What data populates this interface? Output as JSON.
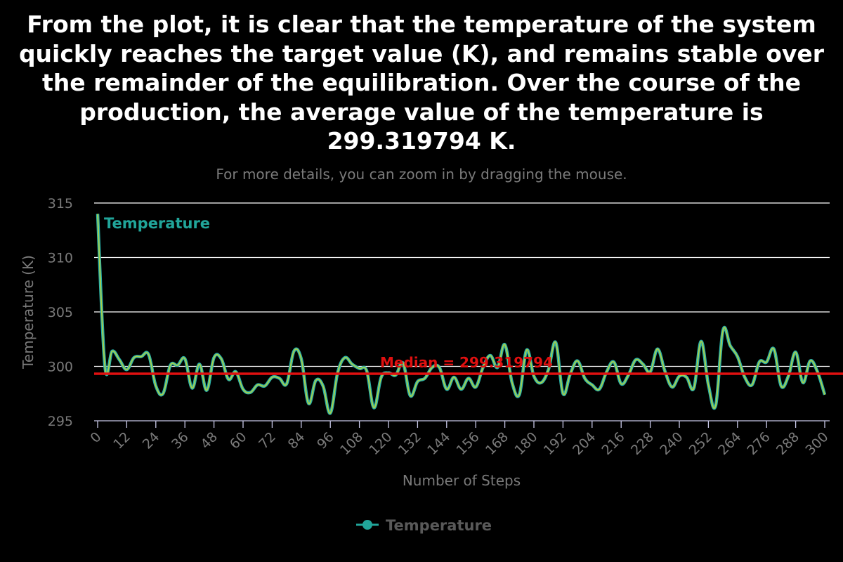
{
  "header": {
    "title": "From the plot, it is clear that the temperature of the system\nquickly reaches the target value (K), and remains stable over\nthe remainder of the equilibration. Over the course of the\nproduction, the average value of the temperature is\n299.319794 K.",
    "subtitle": "For more details, you can zoom in by dragging the mouse."
  },
  "colors": {
    "background": "#000000",
    "line_outer": "#2ab0a8",
    "line_inner": "#a8d04a",
    "median": "#e01010",
    "grid": "#ffffff"
  },
  "chart_data": {
    "type": "line",
    "xlabel": "Number of Steps",
    "ylabel": "Temperature (K)",
    "xlim": [
      0,
      300
    ],
    "ylim": [
      295,
      315
    ],
    "x_ticks": [
      "0",
      "12",
      "24",
      "36",
      "48",
      "60",
      "72",
      "84",
      "96",
      "108",
      "120",
      "132",
      "144",
      "156",
      "168",
      "180",
      "192",
      "204",
      "216",
      "228",
      "240",
      "252",
      "264",
      "276",
      "288",
      "300"
    ],
    "y_ticks": [
      "295",
      "300",
      "305",
      "310",
      "315"
    ],
    "grid": true,
    "legend_position": "bottom-center",
    "series": [
      {
        "name": "Temperature",
        "x": [
          0,
          3,
          6,
          9,
          12,
          15,
          18,
          21,
          24,
          27,
          30,
          33,
          36,
          39,
          42,
          45,
          48,
          51,
          54,
          57,
          60,
          63,
          66,
          69,
          72,
          75,
          78,
          81,
          84,
          87,
          90,
          93,
          96,
          99,
          102,
          105,
          108,
          111,
          114,
          117,
          120,
          123,
          126,
          129,
          132,
          135,
          138,
          141,
          144,
          147,
          150,
          153,
          156,
          159,
          162,
          165,
          168,
          171,
          174,
          177,
          180,
          183,
          186,
          189,
          192,
          195,
          198,
          201,
          204,
          207,
          210,
          213,
          216,
          219,
          222,
          225,
          228,
          231,
          234,
          237,
          240,
          243,
          246,
          249,
          252,
          255,
          258,
          261,
          264,
          267,
          270,
          273,
          276,
          279,
          282,
          285,
          288,
          291,
          294,
          297,
          300
        ],
        "values": [
          314.0,
          300.0,
          301.4,
          300.6,
          299.7,
          300.8,
          300.9,
          301.1,
          298.2,
          297.5,
          300.1,
          300.1,
          300.7,
          298.0,
          300.2,
          297.8,
          300.8,
          300.7,
          298.8,
          299.5,
          297.9,
          297.6,
          298.3,
          298.2,
          299.0,
          298.9,
          298.4,
          301.4,
          300.7,
          296.6,
          298.7,
          298.2,
          295.7,
          299.4,
          300.8,
          300.2,
          299.8,
          299.6,
          296.2,
          299.0,
          299.4,
          299.2,
          300.3,
          297.3,
          298.6,
          298.9,
          299.9,
          299.9,
          297.9,
          299.0,
          297.9,
          298.9,
          298.1,
          299.9,
          301.0,
          299.9,
          302.0,
          298.5,
          297.4,
          301.5,
          299.1,
          298.5,
          299.7,
          302.2,
          297.5,
          299.3,
          300.5,
          298.9,
          298.3,
          297.9,
          299.5,
          300.4,
          298.4,
          299.2,
          300.6,
          300.2,
          299.5,
          301.6,
          299.6,
          298.1,
          299.1,
          299.0,
          298.0,
          302.3,
          298.3,
          296.4,
          303.3,
          301.9,
          300.9,
          299.0,
          298.3,
          300.4,
          300.4,
          301.6,
          298.2,
          299.1,
          301.3,
          298.5,
          300.5,
          299.5,
          297.4
        ]
      }
    ],
    "series_label": "Temperature",
    "median": {
      "value": 299.319794,
      "label": "Median = 299.319794"
    }
  }
}
